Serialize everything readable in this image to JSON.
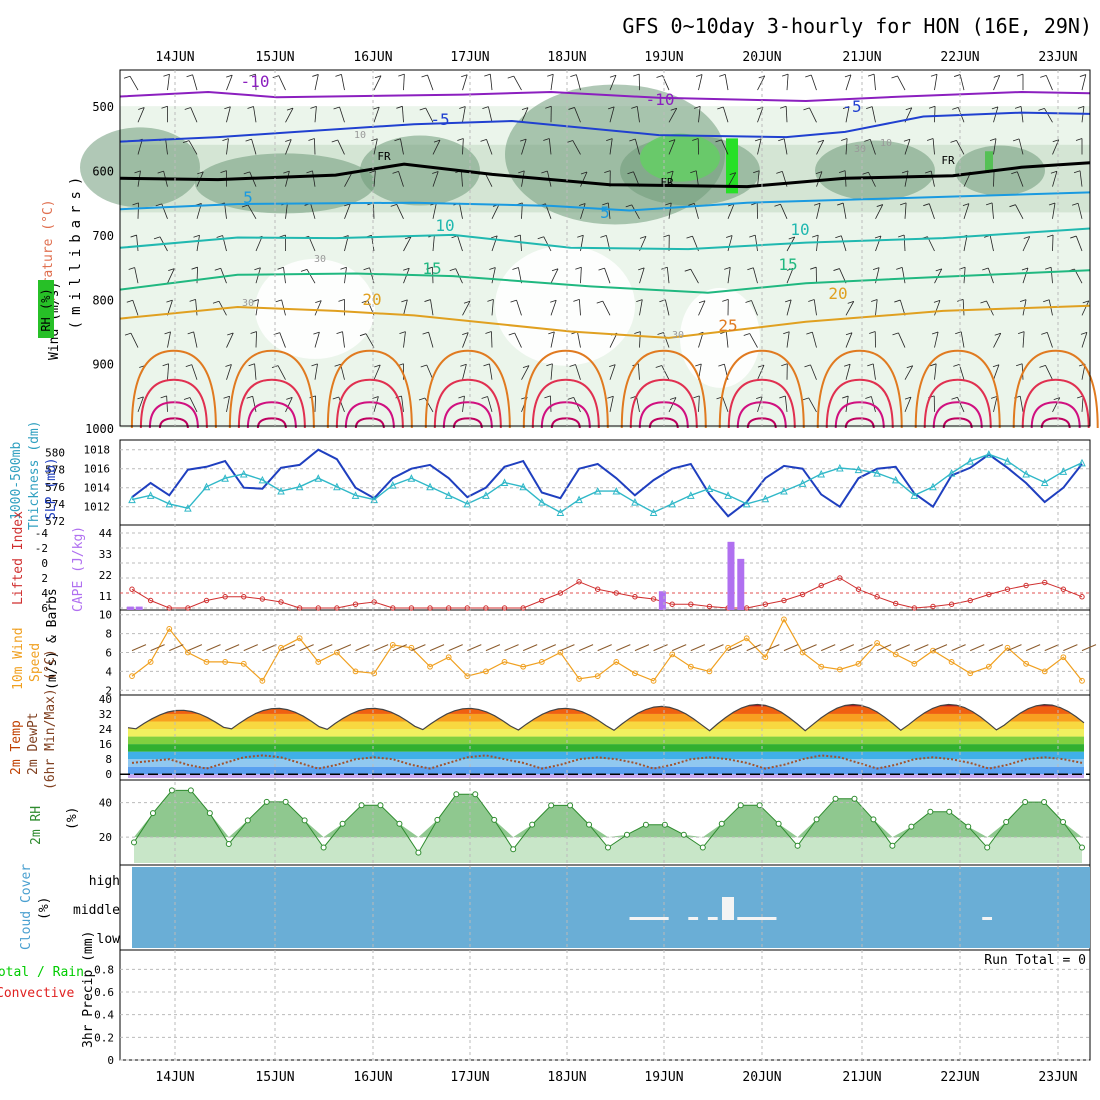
{
  "title": "GFS 0~10day 3-hourly for HON (16E, 29N)",
  "dates": [
    "14JUN",
    "15JUN",
    "16JUN",
    "17JUN",
    "18JUN",
    "19JUN",
    "20JUN",
    "21JUN",
    "22JUN",
    "23JUN"
  ],
  "colors": {
    "rh_light": "#e6f3e6",
    "rh_mid": "#a9c9a9",
    "rh_dark": "#6f9a7a",
    "rh_bright": "#27e027",
    "slp": "#1f3fbf",
    "thickness": "#30b8c8",
    "lifted": "#d03030",
    "cape": "#b070f0",
    "wind": "#f0a020",
    "barb": "#8b5a2b",
    "rh2m": "#2e8b2e",
    "cloud": "#6aaed6",
    "precip_total": "#00cc00",
    "precip_conv": "#e02020"
  },
  "labels": {
    "p1_rh": "RH (%)",
    "p1_temp": "Temperature (°C)",
    "p1_wind": "Wind (m/s)",
    "p1_unit": "(millibars)",
    "p2_thk1": "1000-500mb",
    "p2_thk2": "Thickness (dm)",
    "p2_slp": "SLP (mb)",
    "p3_li": "Lifted Index",
    "p3_cape": "CAPE (J/kg)",
    "p4_w1": "10m Wind",
    "p4_w2": "Speed",
    "p4_w3": "(m/s) & Barbs",
    "p5_t1": "2m Temp",
    "p5_t2": "2m DewPt",
    "p5_t3": "(6hr Min/Max) (°C)",
    "p6_rh": "2m RH",
    "p6_unit": "(%)",
    "p7_cc": "Cloud Cover",
    "p7_unit": "(%)",
    "p8_a": "Total / Rain",
    "p8_b": "Convective",
    "p8_c": "3hr Precip (mm)",
    "run_total": "Run Total = 0"
  },
  "chart_data": [
    {
      "type": "heatmap",
      "panel": "upper-air cross-section",
      "ylabel": "(millibars)",
      "yticks": [
        500,
        600,
        700,
        800,
        900,
        1000
      ],
      "ylim": [
        1000,
        450
      ],
      "temperature_labels": [
        "-10",
        "-10",
        "-5",
        "-5",
        "5",
        "5",
        "10",
        "10",
        "15",
        "15",
        "20",
        "20",
        "25",
        "FR",
        "FR",
        "FR"
      ],
      "rh_labels": [
        "10",
        "30",
        "10",
        "30",
        "30",
        "30"
      ],
      "temperature_isotherms_levels_mb": {
        "-10": [
          [
            0,
            485
          ],
          [
            9,
            478
          ],
          [
            16,
            486
          ],
          [
            35,
            482
          ],
          [
            44,
            478
          ],
          [
            55,
            487
          ],
          [
            70,
            492
          ],
          [
            80,
            485
          ],
          [
            92,
            478
          ],
          [
            99,
            480
          ]
        ],
        "-5": [
          [
            0,
            555
          ],
          [
            10,
            548
          ],
          [
            18,
            540
          ],
          [
            30,
            528
          ],
          [
            40,
            523
          ],
          [
            55,
            545
          ],
          [
            68,
            548
          ],
          [
            74,
            540
          ],
          [
            82,
            516
          ],
          [
            92,
            510
          ],
          [
            99,
            512
          ]
        ],
        "0": [
          [
            0,
            612
          ],
          [
            10,
            614
          ],
          [
            22,
            607
          ],
          [
            29,
            590
          ],
          [
            38,
            606
          ],
          [
            50,
            622
          ],
          [
            64,
            625
          ],
          [
            74,
            612
          ],
          [
            85,
            608
          ],
          [
            92,
            595
          ],
          [
            99,
            588
          ]
        ],
        "5": [
          [
            0,
            660
          ],
          [
            12,
            652
          ],
          [
            30,
            650
          ],
          [
            44,
            655
          ],
          [
            52,
            662
          ],
          [
            64,
            650
          ],
          [
            75,
            645
          ],
          [
            86,
            640
          ],
          [
            99,
            634
          ]
        ],
        "10": [
          [
            0,
            720
          ],
          [
            12,
            704
          ],
          [
            22,
            705
          ],
          [
            34,
            700
          ],
          [
            46,
            720
          ],
          [
            58,
            722
          ],
          [
            70,
            712
          ],
          [
            84,
            705
          ],
          [
            99,
            690
          ]
        ],
        "15": [
          [
            0,
            785
          ],
          [
            12,
            762
          ],
          [
            24,
            760
          ],
          [
            34,
            764
          ],
          [
            48,
            780
          ],
          [
            60,
            790
          ],
          [
            70,
            775
          ],
          [
            84,
            765
          ],
          [
            99,
            755
          ]
        ],
        "20": [
          [
            0,
            830
          ],
          [
            12,
            812
          ],
          [
            22,
            818
          ],
          [
            30,
            825
          ],
          [
            46,
            850
          ],
          [
            56,
            860
          ],
          [
            70,
            835
          ],
          [
            84,
            818
          ],
          [
            99,
            810
          ]
        ]
      },
      "diurnal_cells_x": [
        5.5,
        15.5,
        25.5,
        35.5,
        45.5,
        55.5,
        65.5,
        75.5,
        85.5,
        95.5
      ],
      "x_range": [
        0,
        99
      ]
    },
    {
      "type": "line",
      "panel": "slp-thickness",
      "series": [
        {
          "name": "SLP (mb)",
          "y_axis": "right",
          "values": [
            1013.0,
            1014.5,
            1013.2,
            1015.9,
            1016.2,
            1016.8,
            1014.0,
            1013.9,
            1016.1,
            1016.4,
            1018.0,
            1017.0,
            1014.0,
            1012.9,
            1015.0,
            1016.0,
            1016.4,
            1015.0,
            1013.0,
            1014.0,
            1016.2,
            1016.8,
            1013.5,
            1012.9,
            1016.0,
            1016.5,
            1015.0,
            1013.2,
            1014.8,
            1016.0,
            1016.5,
            1013.3,
            1011.0,
            1012.5,
            1015.0,
            1016.3,
            1016.0,
            1013.3,
            1012.0,
            1015.0,
            1016.0,
            1016.2,
            1013.4,
            1012.0,
            1015.3,
            1016.1,
            1017.5,
            1016.1,
            1014.5,
            1012.5,
            1014.0,
            1016.5
          ]
        },
        {
          "name": "1000-500mb Thickness (dm)",
          "y_axis": "left",
          "values": [
            574.5,
            575.0,
            574.0,
            573.5,
            576.0,
            577.0,
            577.5,
            576.8,
            575.5,
            576.0,
            577.0,
            576.0,
            575.0,
            574.5,
            576.2,
            577.0,
            576.0,
            575.0,
            574.0,
            575.0,
            576.5,
            576.0,
            574.2,
            573.0,
            574.5,
            575.5,
            575.5,
            574.2,
            573.0,
            574.0,
            575.0,
            575.8,
            575.0,
            574.0,
            574.6,
            575.5,
            576.4,
            577.5,
            578.2,
            578.0,
            577.6,
            576.8,
            575.0,
            576.0,
            577.6,
            579.0,
            579.8,
            579.0,
            577.5,
            576.5,
            577.8,
            578.8
          ]
        }
      ],
      "ylim_left": [
        572,
        581
      ],
      "ylim_right": [
        1010.5,
        1018.6
      ],
      "yticks_left": [
        572,
        574,
        576,
        578,
        580
      ],
      "yticks_right": [
        1012,
        1014,
        1016,
        1018
      ]
    },
    {
      "type": "bar",
      "panel": "lifted-cape",
      "series": [
        {
          "name": "Lifted Index",
          "values": [
            3.5,
            5,
            6,
            6,
            5,
            4.5,
            4.5,
            4.8,
            5.2,
            6,
            6,
            6,
            5.5,
            5.2,
            6,
            6,
            6,
            6,
            6,
            6,
            6,
            6,
            5,
            4,
            2.5,
            3.5,
            4,
            4.5,
            4.8,
            5.5,
            5.5,
            5.8,
            6,
            6,
            5.5,
            5,
            4.2,
            3,
            2,
            3.5,
            4.5,
            5.4,
            6,
            5.8,
            5.5,
            5,
            4.2,
            3.5,
            3,
            2.6,
            3.5,
            4.5
          ]
        },
        {
          "name": "CAPE (J/kg)",
          "bars": [
            [
              0.7,
              2
            ],
            [
              1.6,
              2
            ],
            [
              55.0,
              11
            ],
            [
              62.0,
              40
            ],
            [
              63.0,
              30
            ]
          ]
        }
      ],
      "yticks_left": [
        "-4",
        "-2",
        "0",
        "2",
        "4",
        "6"
      ],
      "yticks_right": [
        "44",
        "33",
        "22",
        "11"
      ]
    },
    {
      "type": "line",
      "panel": "10m-wind",
      "ylabel": "(m/s)",
      "yticks": [
        2,
        4,
        6,
        8,
        10
      ],
      "ylim": [
        1.5,
        10.5
      ],
      "values": [
        3.5,
        5.0,
        8.5,
        6.0,
        5.0,
        5.0,
        4.8,
        3.0,
        6.5,
        7.5,
        5.0,
        6.0,
        4.0,
        3.8,
        6.8,
        6.5,
        4.5,
        5.5,
        3.5,
        4.0,
        5.0,
        4.5,
        5.0,
        6.0,
        3.2,
        3.5,
        5.0,
        3.8,
        3.0,
        5.8,
        4.5,
        4.0,
        6.5,
        7.5,
        5.5,
        9.5,
        6.0,
        4.5,
        4.2,
        4.8,
        7.0,
        5.8,
        4.8,
        6.2,
        5.0,
        3.8,
        4.5,
        6.5,
        4.8,
        4.0,
        5.5,
        3.0
      ]
    },
    {
      "type": "area",
      "panel": "2m-temp",
      "ylabel": "(°C)",
      "yticks": [
        0,
        8,
        16,
        24,
        32,
        40
      ],
      "ylim": [
        -2,
        41
      ],
      "temp_max_per_day": [
        34,
        35,
        35,
        35,
        35,
        36,
        37,
        37,
        37,
        37
      ],
      "temp_min": 23,
      "dewpoint": [
        6,
        7,
        8,
        5,
        3,
        6,
        9,
        10,
        9,
        6,
        3,
        5,
        8,
        9,
        8,
        5,
        3,
        6,
        9,
        10,
        8,
        6,
        3,
        5,
        8,
        9,
        8,
        6,
        3,
        5,
        8,
        9,
        8,
        6,
        3,
        5,
        8,
        10,
        9,
        6,
        3,
        5,
        8,
        9,
        8,
        6,
        3,
        5,
        8,
        9,
        8,
        6
      ]
    },
    {
      "type": "area",
      "panel": "2m-rh",
      "ylabel": "(%)",
      "yticks": [
        20,
        40
      ],
      "ylim": [
        5,
        52
      ],
      "peaks": [
        49,
        42,
        40,
        47,
        40,
        28,
        40,
        44,
        36,
        42
      ],
      "troughs": [
        17,
        16,
        14,
        11,
        13,
        14,
        14,
        15,
        15,
        14
      ]
    },
    {
      "type": "heatmap",
      "panel": "cloud-cover",
      "yticks": [
        "high",
        "middle",
        "low"
      ],
      "middle_cloud_segments": [
        [
          52,
          56
        ],
        [
          58,
          59
        ],
        [
          60,
          61
        ],
        [
          63,
          67
        ],
        [
          88,
          89
        ]
      ]
    },
    {
      "type": "bar",
      "panel": "3hr-precip",
      "ylabel": "3hr Precip (mm)",
      "yticks": [
        "0",
        "0.2",
        "0.4",
        "0.6",
        "0.8"
      ],
      "ylim": [
        0,
        0.9
      ],
      "values": []
    }
  ]
}
